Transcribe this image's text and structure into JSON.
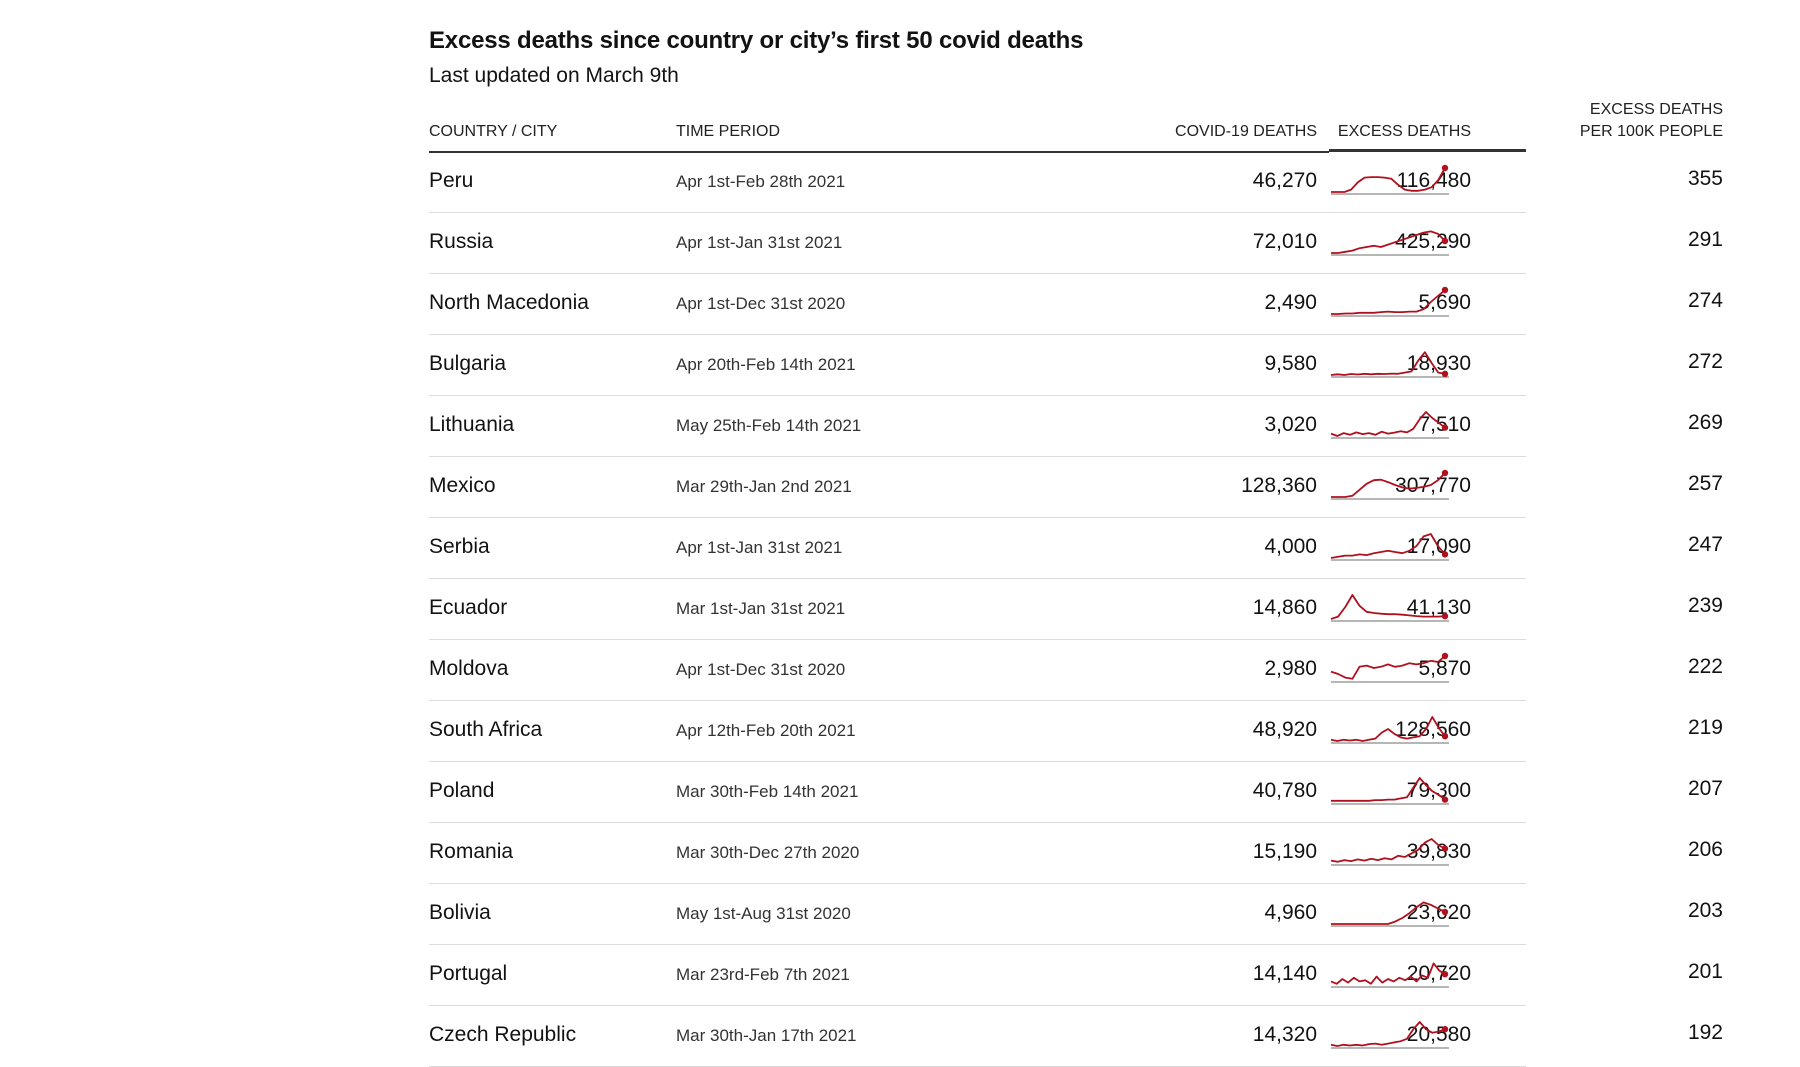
{
  "title": "Excess deaths since country or city’s first 50 covid deaths",
  "subtitle": "Last updated on March 9th",
  "headers": {
    "country": "COUNTRY / CITY",
    "period": "TIME PERIOD",
    "covid": "COVID-19 DEATHS",
    "excess": "EXCESS DEATHS",
    "per_line1": "EXCESS DEATHS",
    "per_line2": "PER 100K PEOPLE"
  },
  "colors": {
    "line": "#b0101e",
    "baseline": "#8a8a8a",
    "rule": "#333333"
  },
  "chart_data": {
    "type": "table",
    "title": "Excess deaths since country or city’s first 50 covid deaths",
    "subtitle": "Last updated on March 9th",
    "columns": [
      "COUNTRY / CITY",
      "TIME PERIOD",
      "COVID-19 DEATHS",
      "EXCESS DEATHS",
      "EXCESS DEATHS PER 100K PEOPLE"
    ],
    "rows": [
      {
        "country": "Peru",
        "period": "Apr 1st-Feb 28th 2021",
        "covid": "46,270",
        "excess": "116,480",
        "per100k": "355",
        "trend": [
          0,
          0,
          0,
          0.1,
          0.4,
          0.6,
          0.62,
          0.62,
          0.6,
          0.55,
          0.3,
          0.1,
          0.05,
          0.05,
          0.1,
          0.2,
          0.5,
          1.0
        ]
      },
      {
        "country": "Russia",
        "period": "Apr 1st-Jan 31st 2021",
        "covid": "72,010",
        "excess": "425,290",
        "per100k": "291",
        "trend": [
          0,
          0,
          0.05,
          0.1,
          0.2,
          0.25,
          0.3,
          0.25,
          0.35,
          0.45,
          0.55,
          0.65,
          0.75,
          0.85,
          0.9,
          0.8,
          0.5
        ]
      },
      {
        "country": "North Macedonia",
        "period": "Apr 1st-Dec 31st 2020",
        "covid": "2,490",
        "excess": "5,690",
        "per100k": "274",
        "trend": [
          0,
          0,
          0.02,
          0.02,
          0.05,
          0.05,
          0.05,
          0.08,
          0.1,
          0.08,
          0.08,
          0.1,
          0.1,
          0.2,
          0.5,
          0.75,
          1.0
        ]
      },
      {
        "country": "Bulgaria",
        "period": "Apr 20th-Feb 14th 2021",
        "covid": "9,580",
        "excess": "18,930",
        "per100k": "272",
        "trend": [
          0,
          0.03,
          0,
          0.04,
          0.02,
          0.05,
          0.03,
          0.05,
          0.04,
          0.06,
          0.05,
          0.1,
          0.15,
          0.6,
          0.95,
          0.5,
          0.1,
          0.05
        ]
      },
      {
        "country": "Lithuania",
        "period": "May 25th-Feb 14th 2021",
        "covid": "3,020",
        "excess": "7,510",
        "per100k": "269",
        "trend": [
          0.1,
          0,
          0.12,
          0.05,
          0.15,
          0.08,
          0.12,
          0.05,
          0.18,
          0.1,
          0.14,
          0.2,
          0.15,
          0.3,
          0.7,
          1.0,
          0.75,
          0.55,
          0.35
        ]
      },
      {
        "country": "Mexico",
        "period": "Mar 29th-Jan 2nd 2021",
        "covid": "128,360",
        "excess": "307,770",
        "per100k": "257",
        "trend": [
          0,
          0,
          0,
          0.05,
          0.3,
          0.55,
          0.7,
          0.72,
          0.62,
          0.5,
          0.4,
          0.35,
          0.38,
          0.42,
          0.5,
          0.7,
          1.0
        ]
      },
      {
        "country": "Serbia",
        "period": "Apr 1st-Jan 31st 2021",
        "covid": "4,000",
        "excess": "17,090",
        "per100k": "247",
        "trend": [
          0,
          0.05,
          0.1,
          0.1,
          0.15,
          0.12,
          0.2,
          0.25,
          0.3,
          0.25,
          0.2,
          0.3,
          0.5,
          0.9,
          1.0,
          0.5,
          0.15
        ]
      },
      {
        "country": "Ecuador",
        "period": "Mar 1st-Jan 31st 2021",
        "covid": "14,860",
        "excess": "41,130",
        "per100k": "239",
        "trend": [
          0,
          0.1,
          0.5,
          1.0,
          0.55,
          0.3,
          0.25,
          0.22,
          0.2,
          0.2,
          0.18,
          0.15,
          0.12,
          0.1,
          0.1,
          0.1,
          0.12
        ]
      },
      {
        "country": "Moldova",
        "period": "Apr 1st-Dec 31st 2020",
        "covid": "2,980",
        "excess": "5,870",
        "per100k": "222",
        "trend": [
          0.35,
          0.25,
          0.1,
          0.05,
          0.55,
          0.6,
          0.5,
          0.55,
          0.65,
          0.55,
          0.6,
          0.7,
          0.65,
          0.7,
          0.8,
          0.75,
          1.0
        ]
      },
      {
        "country": "South Africa",
        "period": "Apr 12th-Feb 20th 2021",
        "covid": "48,920",
        "excess": "128,560",
        "per100k": "219",
        "trend": [
          0.05,
          0,
          0.05,
          0.02,
          0.05,
          0,
          0.05,
          0.1,
          0.35,
          0.5,
          0.3,
          0.15,
          0.1,
          0.15,
          0.2,
          0.5,
          1.0,
          0.55,
          0.2
        ]
      },
      {
        "country": "Poland",
        "period": "Mar 30th-Feb 14th 2021",
        "covid": "40,780",
        "excess": "79,300",
        "per100k": "207",
        "trend": [
          0.05,
          0.05,
          0.05,
          0.05,
          0.05,
          0.05,
          0.05,
          0.08,
          0.08,
          0.1,
          0.1,
          0.15,
          0.2,
          0.6,
          1.0,
          0.7,
          0.45,
          0.3,
          0.1
        ]
      },
      {
        "country": "Romania",
        "period": "Mar 30th-Dec 27th 2020",
        "covid": "15,190",
        "excess": "39,830",
        "per100k": "206",
        "trend": [
          0.1,
          0.05,
          0.12,
          0.08,
          0.15,
          0.1,
          0.18,
          0.12,
          0.2,
          0.15,
          0.3,
          0.25,
          0.4,
          0.55,
          0.85,
          1.0,
          0.75,
          0.6
        ]
      },
      {
        "country": "Bolivia",
        "period": "May 1st-Aug 31st 2020",
        "covid": "4,960",
        "excess": "23,620",
        "per100k": "203",
        "trend": [
          0,
          0,
          0,
          0,
          0,
          0,
          0,
          0,
          0,
          0.1,
          0.25,
          0.45,
          0.7,
          0.9,
          0.8,
          0.65,
          0.5
        ]
      },
      {
        "country": "Portugal",
        "period": "Mar 23rd-Feb 7th 2021",
        "covid": "14,140",
        "excess": "20,720",
        "per100k": "201",
        "trend": [
          0.15,
          0.05,
          0.25,
          0.1,
          0.3,
          0.15,
          0.2,
          0.05,
          0.35,
          0.1,
          0.25,
          0.15,
          0.3,
          0.2,
          0.35,
          0.15,
          0.4,
          0.3,
          0.9,
          0.6,
          0.45
        ]
      },
      {
        "country": "Czech Republic",
        "period": "Mar 30th-Jan 17th 2021",
        "covid": "14,320",
        "excess": "20,580",
        "per100k": "192",
        "trend": [
          0.05,
          0,
          0.05,
          0.02,
          0.05,
          0.02,
          0.08,
          0.1,
          0.05,
          0.1,
          0.15,
          0.2,
          0.3,
          0.7,
          1.0,
          0.7,
          0.55,
          0.6,
          0.7
        ]
      }
    ]
  }
}
